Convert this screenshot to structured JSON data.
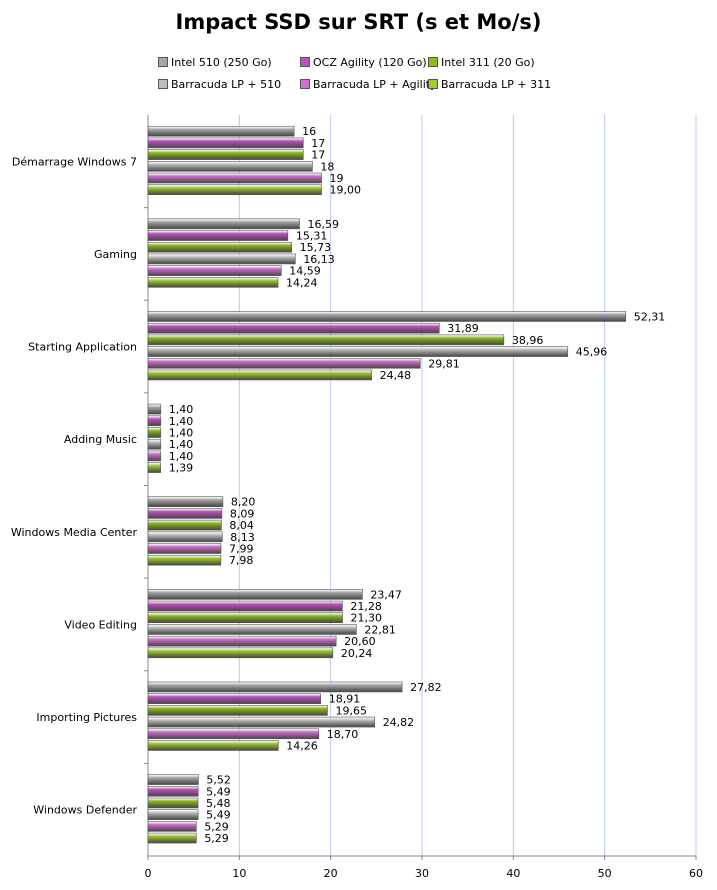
{
  "chart_data": {
    "type": "bar",
    "orientation": "horizontal",
    "title": "Impact SSD sur SRT (s et Mo/s)",
    "xlabel": "",
    "ylabel": "",
    "xlim": [
      0,
      60
    ],
    "xticks": [
      0,
      10,
      20,
      30,
      40,
      50,
      60
    ],
    "grid": true,
    "legend_position": "top",
    "categories": [
      "Démarrage Windows 7",
      "Gaming",
      "Starting Application",
      "Adding Music",
      "Windows Media Center",
      "Video Editing",
      "Importing Pictures",
      "Windows Defender"
    ],
    "series": [
      {
        "name": "Intel 510 (250 Go)",
        "color": "#a8a8a8",
        "values": [
          16,
          16.59,
          52.31,
          1.4,
          8.2,
          23.47,
          27.82,
          5.52
        ],
        "labels": [
          "16",
          "16,59",
          "52,31",
          "1,40",
          "8,20",
          "23,47",
          "27,82",
          "5,52"
        ]
      },
      {
        "name": "OCZ Agility (120 Go)",
        "color": "#c050c0",
        "values": [
          17,
          15.31,
          31.89,
          1.4,
          8.09,
          21.28,
          18.91,
          5.49
        ],
        "labels": [
          "17",
          "15,31",
          "31,89",
          "1,40",
          "8,09",
          "21,28",
          "18,91",
          "5,49"
        ]
      },
      {
        "name": "Intel 311 (20 Go)",
        "color": "#8cbc1c",
        "values": [
          17,
          15.73,
          38.96,
          1.4,
          8.04,
          21.3,
          19.65,
          5.48
        ],
        "labels": [
          "17",
          "15,73",
          "38,96",
          "1,40",
          "8,04",
          "21,30",
          "19,65",
          "5,48"
        ]
      },
      {
        "name": "Barracuda LP + 510",
        "color": "#bdbdbd",
        "values": [
          18,
          16.13,
          45.96,
          1.4,
          8.13,
          22.81,
          24.82,
          5.49
        ],
        "labels": [
          "18",
          "16,13",
          "45,96",
          "1,40",
          "8,13",
          "22,81",
          "24,82",
          "5,49"
        ]
      },
      {
        "name": "Barracuda LP + Agility",
        "color": "#d070d0",
        "values": [
          19,
          14.59,
          29.81,
          1.4,
          7.99,
          20.6,
          18.7,
          5.29
        ],
        "labels": [
          "19",
          "14,59",
          "29,81",
          "1,40",
          "7,99",
          "20,60",
          "18,70",
          "5,29"
        ]
      },
      {
        "name": "Barracuda LP + 311",
        "color": "#a0cc30",
        "values": [
          19.0,
          14.24,
          24.48,
          1.39,
          7.98,
          20.24,
          14.26,
          5.29
        ],
        "labels": [
          "19,00",
          "14,24",
          "24,48",
          "1,39",
          "7,98",
          "20,24",
          "14,26",
          "5,29"
        ]
      }
    ]
  }
}
